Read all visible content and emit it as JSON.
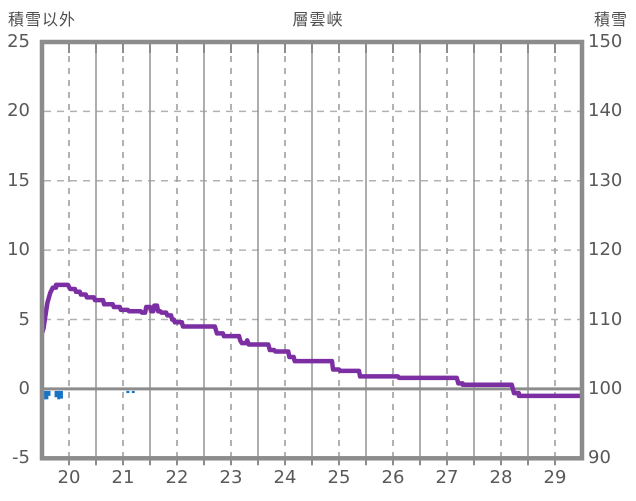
{
  "header": {
    "left_axis_title": "積雪以外",
    "chart_title": "層雲峡",
    "right_axis_title": "積雪"
  },
  "chart_data": {
    "type": "line",
    "title": "層雲峡",
    "left_axis": {
      "title": "積雪以外",
      "min": -5,
      "max": 25,
      "tick_labels": [
        "25",
        "20",
        "15",
        "10",
        "5",
        "0",
        "-5"
      ],
      "tick_values": [
        25,
        20,
        15,
        10,
        5,
        0,
        -5
      ],
      "dashed_grid_values": [
        20,
        15,
        10,
        5
      ]
    },
    "right_axis": {
      "title": "積雪",
      "min": 90,
      "max": 150,
      "tick_labels": [
        "150",
        "140",
        "130",
        "120",
        "110",
        "100",
        "90"
      ],
      "tick_values": [
        150,
        140,
        130,
        120,
        110,
        100,
        90
      ],
      "right_axis_equivalent": "right value = 100 + 2 × left value"
    },
    "x_axis": {
      "tick_labels": [
        "20",
        "21",
        "22",
        "23",
        "24",
        "25",
        "26",
        "27",
        "28",
        "29"
      ],
      "tick_values": [
        20,
        21,
        22,
        23,
        24,
        25,
        26,
        27,
        28,
        29
      ],
      "domain": [
        20,
        30
      ],
      "solid_grid": "at day boundaries",
      "dashed_grid": "at half-day positions"
    },
    "zero_line_left_value": 0,
    "grid_on": true,
    "legend_position": "none",
    "series": [
      {
        "id": "purple_step_line",
        "axis": "left",
        "color": "#7B2FA3",
        "style": "step_line",
        "points": [
          [
            20.0,
            4.0
          ],
          [
            20.03,
            4.4
          ],
          [
            20.06,
            5.2
          ],
          [
            20.1,
            6.2
          ],
          [
            20.15,
            6.9
          ],
          [
            20.2,
            7.3
          ],
          [
            20.26,
            7.5
          ],
          [
            20.48,
            7.5
          ],
          [
            20.52,
            7.2
          ],
          [
            20.61,
            7.2
          ],
          [
            20.63,
            7.0
          ],
          [
            20.7,
            7.0
          ],
          [
            20.72,
            6.8
          ],
          [
            20.81,
            6.8
          ],
          [
            20.83,
            6.6
          ],
          [
            20.96,
            6.6
          ],
          [
            20.98,
            6.4
          ],
          [
            21.13,
            6.4
          ],
          [
            21.15,
            6.1
          ],
          [
            21.31,
            6.1
          ],
          [
            21.33,
            5.9
          ],
          [
            21.44,
            5.9
          ],
          [
            21.46,
            5.7
          ],
          [
            21.59,
            5.7
          ],
          [
            21.61,
            5.6
          ],
          [
            21.83,
            5.6
          ],
          [
            21.85,
            5.5
          ],
          [
            21.91,
            5.5
          ],
          [
            21.93,
            5.9
          ],
          [
            22.0,
            5.9
          ],
          [
            22.02,
            5.6
          ],
          [
            22.06,
            5.6
          ],
          [
            22.08,
            6.0
          ],
          [
            22.13,
            6.0
          ],
          [
            22.15,
            5.6
          ],
          [
            22.19,
            5.6
          ],
          [
            22.21,
            5.5
          ],
          [
            22.3,
            5.5
          ],
          [
            22.32,
            5.3
          ],
          [
            22.39,
            5.3
          ],
          [
            22.41,
            5.0
          ],
          [
            22.44,
            5.0
          ],
          [
            22.46,
            4.8
          ],
          [
            22.59,
            4.8
          ],
          [
            22.61,
            4.5
          ],
          [
            23.2,
            4.5
          ],
          [
            23.24,
            4.0
          ],
          [
            23.35,
            4.0
          ],
          [
            23.37,
            3.8
          ],
          [
            23.65,
            3.8
          ],
          [
            23.67,
            3.5
          ],
          [
            23.7,
            3.3
          ],
          [
            23.78,
            3.3
          ],
          [
            23.8,
            3.5
          ],
          [
            23.83,
            3.2
          ],
          [
            24.19,
            3.2
          ],
          [
            24.22,
            2.8
          ],
          [
            24.3,
            2.8
          ],
          [
            24.32,
            2.7
          ],
          [
            24.56,
            2.7
          ],
          [
            24.58,
            2.3
          ],
          [
            24.66,
            2.3
          ],
          [
            24.68,
            2.0
          ],
          [
            25.37,
            2.0
          ],
          [
            25.39,
            1.4
          ],
          [
            25.5,
            1.4
          ],
          [
            25.52,
            1.3
          ],
          [
            25.87,
            1.3
          ],
          [
            25.89,
            0.9
          ],
          [
            26.59,
            0.9
          ],
          [
            26.61,
            0.8
          ],
          [
            27.68,
            0.8
          ],
          [
            27.71,
            0.4
          ],
          [
            27.79,
            0.3
          ],
          [
            28.7,
            0.3
          ],
          [
            28.74,
            -0.3
          ],
          [
            28.83,
            -0.5
          ],
          [
            29.99,
            -0.5
          ]
        ]
      },
      {
        "id": "blue_bars",
        "axis": "left",
        "color": "#1874C4",
        "style": "bars_hanging_below_zero_line",
        "bar_width_days": 0.045,
        "points": [
          [
            20.01,
            0.5
          ],
          [
            20.05,
            0.75
          ],
          [
            20.09,
            0.75
          ],
          [
            20.13,
            0.5
          ],
          [
            20.26,
            0.6
          ],
          [
            20.31,
            0.75
          ],
          [
            20.36,
            0.7
          ],
          [
            21.59,
            0.3
          ],
          [
            21.69,
            0.3
          ]
        ]
      }
    ]
  },
  "colors": {
    "frame": "#8C8C8C",
    "grid_solid": "#999999",
    "grid_dashed": "#9F9F9F",
    "grid_horizontal": "#B2B2B2",
    "zero_line": "#8C8C8C",
    "text": "#595959",
    "line": "#7B2FA3",
    "bars": "#1874C4",
    "background": "#FFFFFF"
  }
}
